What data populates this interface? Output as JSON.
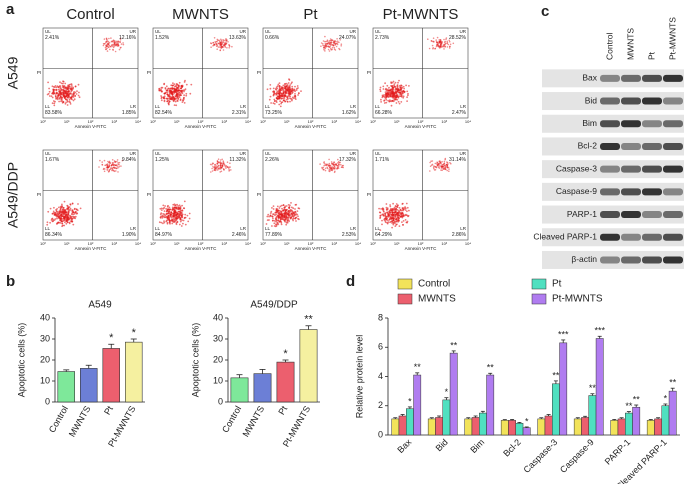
{
  "panel_labels": [
    "a",
    "b",
    "c",
    "d"
  ],
  "flow": {
    "columns": [
      "Control",
      "MWNTS",
      "Pt",
      "Pt-MWNTS"
    ],
    "rows": [
      "A549",
      "A549/DDP"
    ],
    "x_axis_label": "Annexin V-FITC",
    "y_axis_label": "PI",
    "axis_ticks": [
      "10⁰",
      "10¹",
      "10²",
      "10³",
      "10⁴"
    ],
    "quadrant_names": [
      "UL",
      "UR",
      "LL",
      "LR"
    ],
    "plots": [
      [
        [
          "2.41%",
          "12.16%",
          "83.58%",
          "1.85%"
        ],
        [
          "1.52%",
          "13.63%",
          "82.54%",
          "2.31%"
        ],
        [
          "0.66%",
          "24.07%",
          "73.25%",
          "1.62%"
        ],
        [
          "2.73%",
          "28.52%",
          "66.28%",
          "2.47%"
        ]
      ],
      [
        [
          "1.67%",
          "9.84%",
          "86.34%",
          "1.90%"
        ],
        [
          "1.25%",
          "11.32%",
          "84.97%",
          "2.46%"
        ],
        [
          "2.26%",
          "17.32%",
          "77.89%",
          "2.53%"
        ],
        [
          "1.71%",
          "31.14%",
          "64.29%",
          "2.86%"
        ]
      ]
    ]
  },
  "western": {
    "columns": [
      "Control",
      "MWNTS",
      "Pt",
      "Pt-MWNTS"
    ],
    "rows": [
      "Bax",
      "Bid",
      "Bim",
      "Bcl-2",
      "Caspase-3",
      "Caspase-9",
      "PARP-1",
      "Cleaved PARP-1",
      "β-actin"
    ]
  },
  "chart_data": [
    {
      "type": "bar",
      "title": "A549",
      "y_label": "Apoptotic cells (%)",
      "categories": [
        "Control",
        "MWNTS",
        "Pt",
        "Pt-MWNTS"
      ],
      "values": [
        14.5,
        16,
        25.5,
        28.5
      ],
      "errors": [
        0.8,
        1.5,
        2,
        1.5
      ],
      "annotations": [
        null,
        null,
        "*",
        "*"
      ],
      "colors": [
        "#7ee89a",
        "#6c7fd6",
        "#ec5f6e",
        "#f5f0a0"
      ],
      "ylim": [
        0,
        40
      ],
      "yticks": [
        0,
        10,
        20,
        30,
        40
      ]
    },
    {
      "type": "bar",
      "title": "A549/DDP",
      "y_label": "Apoptotic cells (%)",
      "categories": [
        "Control",
        "MWNTS",
        "Pt",
        "Pt-MWNTS"
      ],
      "values": [
        11.5,
        13.5,
        19,
        34.5
      ],
      "errors": [
        1.5,
        2,
        1,
        1.8
      ],
      "annotations": [
        null,
        null,
        "*",
        "**"
      ],
      "colors": [
        "#7ee89a",
        "#6c7fd6",
        "#ec5f6e",
        "#f5f0a0"
      ],
      "ylim": [
        0,
        40
      ],
      "yticks": [
        0,
        10,
        20,
        30,
        40
      ]
    },
    {
      "type": "grouped_bar",
      "y_label": "Relative protein level",
      "categories": [
        "Bax",
        "Bid",
        "Bim",
        "Bcl-2",
        "Caspase-3",
        "Caspase-9",
        "PARP-1",
        "Cleaved PARP-1"
      ],
      "ylim": [
        0,
        8
      ],
      "yticks": [
        0,
        2,
        4,
        6,
        8
      ],
      "series": [
        {
          "name": "Control",
          "color": "#f2e35a",
          "values": [
            1.1,
            1.1,
            1.1,
            1.0,
            1.1,
            1.1,
            1.0,
            1.0
          ],
          "errors": [
            0.08,
            0.08,
            0.08,
            0.05,
            0.08,
            0.08,
            0.06,
            0.06
          ],
          "annotations": [
            null,
            null,
            null,
            null,
            null,
            null,
            null,
            null
          ]
        },
        {
          "name": "MWNTS",
          "color": "#ec5f6e",
          "values": [
            1.3,
            1.2,
            1.2,
            1.0,
            1.3,
            1.2,
            1.1,
            1.1
          ],
          "errors": [
            0.1,
            0.1,
            0.1,
            0.06,
            0.1,
            0.08,
            0.08,
            0.08
          ],
          "annotations": [
            null,
            null,
            null,
            null,
            null,
            null,
            null,
            null
          ]
        },
        {
          "name": "Pt",
          "color": "#4fe0c0",
          "values": [
            1.8,
            2.4,
            1.5,
            0.8,
            3.5,
            2.7,
            1.5,
            2.0
          ],
          "errors": [
            0.12,
            0.15,
            0.12,
            0.06,
            0.2,
            0.12,
            0.1,
            0.12
          ],
          "annotations": [
            "*",
            "*",
            null,
            null,
            "**",
            "**",
            "**",
            "*"
          ]
        },
        {
          "name": "Pt-MWNTS",
          "color": "#b07cf0",
          "values": [
            4.1,
            5.6,
            4.1,
            0.5,
            6.3,
            6.6,
            1.9,
            3.0
          ],
          "errors": [
            0.15,
            0.15,
            0.12,
            0.05,
            0.2,
            0.15,
            0.15,
            0.2
          ],
          "annotations": [
            "**",
            "**",
            "**",
            "*",
            "***",
            "***",
            "**",
            "**"
          ]
        }
      ]
    }
  ]
}
